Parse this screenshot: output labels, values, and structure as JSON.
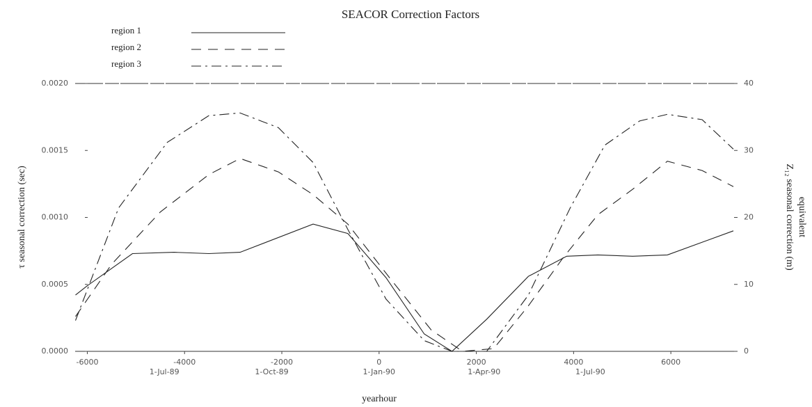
{
  "chart_data": {
    "type": "line",
    "title": "SEACOR Correction Factors",
    "xlabel": "yearhour",
    "ylabel": "τ seasonal correction (sec)",
    "y2label": [
      "equivalent",
      "Z₁₂ seasonal correction (m)"
    ],
    "xlim": [
      -6250,
      7300
    ],
    "ylim": [
      0,
      0.002
    ],
    "y2lim": [
      0,
      40
    ],
    "xticks": [
      -6000,
      -4000,
      -2000,
      0,
      2000,
      4000,
      6000
    ],
    "date_ticks": [
      {
        "value": -4416,
        "label": "1-Jul-89"
      },
      {
        "value": -2208,
        "label": "1-Oct-89"
      },
      {
        "value": 0,
        "label": "1-Jan-90"
      },
      {
        "value": 2160,
        "label": "1-Apr-90"
      },
      {
        "value": 4344,
        "label": "1-Jul-90"
      }
    ],
    "yticks": [
      {
        "value": 0,
        "label": "0.0000"
      },
      {
        "value": 0.0005,
        "label": "0.0005"
      },
      {
        "value": 0.001,
        "label": "0.0010"
      },
      {
        "value": 0.0015,
        "label": "0.0015"
      },
      {
        "value": 0.002,
        "label": "0.0020"
      }
    ],
    "y2ticks": [
      0,
      10,
      20,
      30,
      40
    ],
    "legend": "top-left",
    "series": [
      {
        "name": "region 1",
        "color": "#222222",
        "x": [
          -6243,
          -6000,
          -5071,
          -4214,
          -3500,
          -2857,
          -1357,
          -643,
          143,
          929,
          1500,
          2214,
          3071,
          3857,
          4500,
          5214,
          5929,
          7286
        ],
        "values": [
          0.00042,
          0.00049,
          0.00073,
          0.00074,
          0.00073,
          0.00074,
          0.00095,
          0.00088,
          0.00055,
          0.00013,
          0,
          0.00024,
          0.00056,
          0.00071,
          0.00072,
          0.00071,
          0.00072,
          0.0009
        ]
      },
      {
        "name": "region 2",
        "color": "#222222",
        "x": [
          -6243,
          -5500,
          -4500,
          -3500,
          -2857,
          -2071,
          -1357,
          -643,
          214,
          1071,
          1714,
          2357,
          3071,
          3786,
          4500,
          5214,
          5929,
          6643,
          7286
        ],
        "values": [
          0.00026,
          0.00065,
          0.00104,
          0.00132,
          0.00144,
          0.00134,
          0.00117,
          0.00095,
          0.00055,
          0.00016,
          0,
          2e-05,
          0.00034,
          0.0007,
          0.00102,
          0.00121,
          0.00142,
          0.00135,
          0.00123
        ]
      },
      {
        "name": "region 3",
        "color": "#222222",
        "x": [
          -6243,
          -5357,
          -4357,
          -3500,
          -2857,
          -2071,
          -1357,
          -643,
          143,
          929,
          1500,
          2214,
          3071,
          3929,
          4643,
          5357,
          5929,
          6643,
          7286
        ],
        "values": [
          0.00023,
          0.00107,
          0.00156,
          0.00176,
          0.00178,
          0.00167,
          0.00141,
          0.00091,
          0.00039,
          8e-05,
          0,
          0,
          0.00042,
          0.00107,
          0.00154,
          0.00172,
          0.00177,
          0.00173,
          0.00151
        ]
      }
    ]
  }
}
